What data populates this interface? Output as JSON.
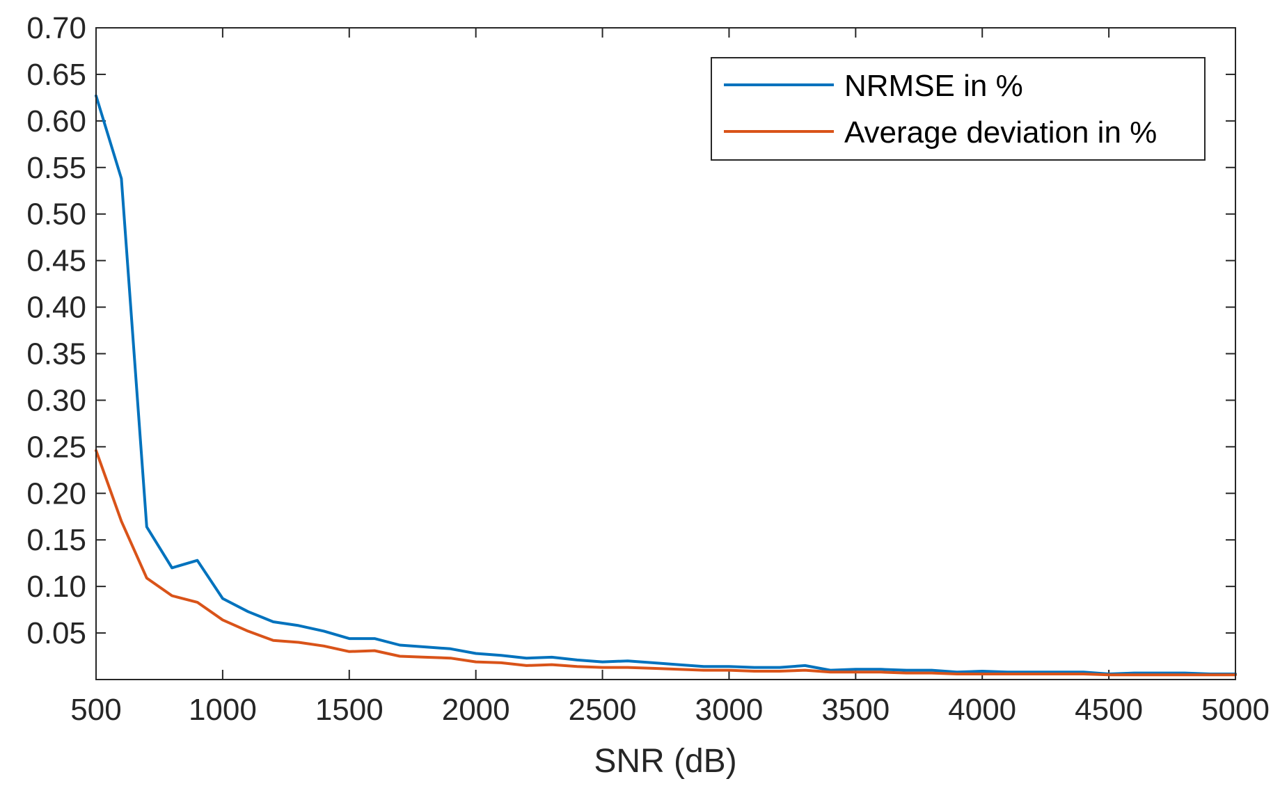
{
  "chart_data": {
    "type": "line",
    "title": "",
    "xlabel": "SNR (dB)",
    "ylabel": "",
    "xlim": [
      500,
      5000
    ],
    "ylim": [
      0,
      0.7
    ],
    "grid": false,
    "legend_position": "top-right",
    "x_ticks": [
      "500",
      "1000",
      "1500",
      "2000",
      "2500",
      "3000",
      "3500",
      "4000",
      "4500",
      "5000"
    ],
    "x_tick_values": [
      500,
      1000,
      1500,
      2000,
      2500,
      3000,
      3500,
      4000,
      4500,
      5000
    ],
    "y_ticks": [
      "0.05",
      "0.10",
      "0.15",
      "0.20",
      "0.25",
      "0.30",
      "0.35",
      "0.40",
      "0.45",
      "0.50",
      "0.55",
      "0.60",
      "0.65",
      "0.70"
    ],
    "y_tick_values": [
      0.05,
      0.1,
      0.15,
      0.2,
      0.25,
      0.3,
      0.35,
      0.4,
      0.45,
      0.5,
      0.55,
      0.6,
      0.65,
      0.7
    ],
    "x": [
      500,
      600,
      700,
      800,
      900,
      1000,
      1100,
      1200,
      1300,
      1400,
      1500,
      1600,
      1700,
      1800,
      1900,
      2000,
      2100,
      2200,
      2300,
      2400,
      2500,
      2600,
      2700,
      2800,
      2900,
      3000,
      3100,
      3200,
      3300,
      3400,
      3500,
      3600,
      3700,
      3800,
      3900,
      4000,
      4100,
      4200,
      4300,
      4400,
      4500,
      4600,
      4700,
      4800,
      4900,
      5000
    ],
    "series": [
      {
        "name": "NRMSE in %",
        "color": "#0072BD",
        "values": [
          0.627,
          0.538,
          0.164,
          0.12,
          0.128,
          0.087,
          0.073,
          0.062,
          0.058,
          0.052,
          0.044,
          0.044,
          0.037,
          0.035,
          0.033,
          0.028,
          0.026,
          0.023,
          0.024,
          0.021,
          0.019,
          0.02,
          0.018,
          0.016,
          0.014,
          0.014,
          0.013,
          0.013,
          0.015,
          0.01,
          0.011,
          0.011,
          0.01,
          0.01,
          0.008,
          0.009,
          0.008,
          0.008,
          0.008,
          0.008,
          0.006,
          0.007,
          0.007,
          0.007,
          0.006,
          0.006
        ]
      },
      {
        "name": "Average deviation in %",
        "color": "#D95319",
        "values": [
          0.246,
          0.17,
          0.109,
          0.09,
          0.083,
          0.064,
          0.052,
          0.042,
          0.04,
          0.036,
          0.03,
          0.031,
          0.025,
          0.024,
          0.023,
          0.019,
          0.018,
          0.015,
          0.016,
          0.014,
          0.013,
          0.013,
          0.012,
          0.011,
          0.01,
          0.01,
          0.009,
          0.009,
          0.01,
          0.008,
          0.008,
          0.008,
          0.007,
          0.007,
          0.006,
          0.006,
          0.006,
          0.006,
          0.006,
          0.006,
          0.005,
          0.005,
          0.005,
          0.005,
          0.005,
          0.005
        ]
      }
    ]
  }
}
